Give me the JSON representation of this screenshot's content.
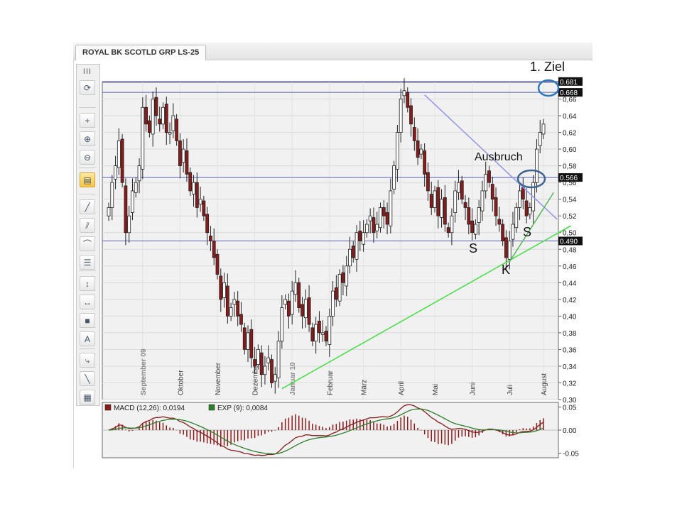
{
  "tab": {
    "title": "ROYAL BK SCOTLD GRP LS-25"
  },
  "toolbar": {
    "grip": "III",
    "buttons": [
      {
        "name": "refresh-icon",
        "glyph": "⟳",
        "active": false
      },
      {
        "name": "crosshair-icon",
        "glyph": "+",
        "active": false
      },
      {
        "name": "zoom-in-icon",
        "glyph": "⊕",
        "active": false
      },
      {
        "name": "zoom-out-icon",
        "glyph": "⊖",
        "active": false
      },
      {
        "name": "chart-settings-icon",
        "glyph": "▤",
        "active": true
      },
      {
        "name": "line-tool-icon",
        "glyph": "╱",
        "active": false
      },
      {
        "name": "channel-tool-icon",
        "glyph": "⫽",
        "active": false
      },
      {
        "name": "arc-tool-icon",
        "glyph": "⌒",
        "active": false
      },
      {
        "name": "fibonacci-tool-icon",
        "glyph": "☰",
        "active": false
      },
      {
        "name": "vertical-line-icon",
        "glyph": "↕",
        "active": false
      },
      {
        "name": "horizontal-line-icon",
        "glyph": "↔",
        "active": false
      },
      {
        "name": "rectangle-tool-icon",
        "glyph": "■",
        "active": false
      },
      {
        "name": "text-tool-icon",
        "glyph": "A",
        "active": false
      },
      {
        "name": "curve-tool-icon",
        "glyph": "⤷",
        "active": false
      },
      {
        "name": "pen-tool-icon",
        "glyph": "╲",
        "active": false
      },
      {
        "name": "palette-icon",
        "glyph": "▦",
        "active": false
      }
    ]
  },
  "annotations": {
    "target": "1. Ziel",
    "breakout": "Ausbruch",
    "left_shoulder": "S",
    "head": "K",
    "right_shoulder": "S"
  },
  "colors": {
    "up": "#ffffff",
    "down": "#8b1a1a",
    "support_trend": "#44e044",
    "resistance_trend": "#8f95ea",
    "neckline_trend": "#55b555",
    "hline": "#5a62c8",
    "circle": "#3e6491",
    "target_circle": "#2e78c0",
    "macd": "#8b1a1a",
    "signal": "#2d7f2d"
  },
  "chart_data": [
    {
      "type": "candlestick",
      "title": "ROYAL BK SCOTLD GRP LS-25",
      "ylim": [
        0.3,
        0.68
      ],
      "yticks": [
        "0,30",
        "0,32",
        "0,34",
        "0,36",
        "0,38",
        "0,40",
        "0,42",
        "0,44",
        "0,46",
        "0,48",
        "0,50",
        "0,52",
        "0,54",
        "0,56",
        "0,58",
        "0,60",
        "0,62",
        "0,64",
        "0,66"
      ],
      "month_labels": [
        {
          "label": "September 09",
          "bold": true,
          "index": 10
        },
        {
          "label": "Oktober",
          "bold": false,
          "index": 21
        },
        {
          "label": "November",
          "bold": false,
          "index": 32
        },
        {
          "label": "Dezember",
          "bold": false,
          "index": 43
        },
        {
          "label": "Januar 10",
          "bold": true,
          "index": 54
        },
        {
          "label": "Februar",
          "bold": false,
          "index": 65
        },
        {
          "label": "März",
          "bold": false,
          "index": 75
        },
        {
          "label": "April",
          "bold": false,
          "index": 86
        },
        {
          "label": "Mai",
          "bold": false,
          "index": 96
        },
        {
          "label": "Juni",
          "bold": false,
          "index": 107
        },
        {
          "label": "Juli",
          "bold": false,
          "index": 118
        },
        {
          "label": "August",
          "bold": false,
          "index": 128
        }
      ],
      "closes": [
        0.53,
        0.56,
        0.58,
        0.61,
        0.56,
        0.5,
        0.52,
        0.55,
        0.56,
        0.58,
        0.65,
        0.63,
        0.62,
        0.66,
        0.64,
        0.63,
        0.65,
        0.62,
        0.62,
        0.64,
        0.61,
        0.58,
        0.6,
        0.57,
        0.55,
        0.56,
        0.53,
        0.54,
        0.52,
        0.5,
        0.49,
        0.47,
        0.45,
        0.42,
        0.44,
        0.4,
        0.41,
        0.42,
        0.4,
        0.39,
        0.36,
        0.38,
        0.35,
        0.34,
        0.36,
        0.33,
        0.34,
        0.35,
        0.32,
        0.33,
        0.37,
        0.41,
        0.42,
        0.4,
        0.43,
        0.44,
        0.41,
        0.4,
        0.42,
        0.39,
        0.37,
        0.39,
        0.38,
        0.38,
        0.37,
        0.4,
        0.43,
        0.42,
        0.45,
        0.44,
        0.46,
        0.48,
        0.47,
        0.5,
        0.49,
        0.5,
        0.51,
        0.52,
        0.5,
        0.51,
        0.53,
        0.52,
        0.51,
        0.55,
        0.58,
        0.62,
        0.66,
        0.67,
        0.65,
        0.63,
        0.61,
        0.59,
        0.6,
        0.57,
        0.55,
        0.53,
        0.55,
        0.52,
        0.54,
        0.51,
        0.5,
        0.52,
        0.55,
        0.56,
        0.54,
        0.53,
        0.51,
        0.5,
        0.51,
        0.53,
        0.55,
        0.57,
        0.56,
        0.54,
        0.52,
        0.51,
        0.49,
        0.47,
        0.49,
        0.51,
        0.53,
        0.55,
        0.54,
        0.52,
        0.53,
        0.56,
        0.6,
        0.62,
        0.63
      ],
      "horizontal_lines": [
        {
          "value": 0.681,
          "label": "0.681"
        },
        {
          "value": 0.668,
          "label": "0.668"
        },
        {
          "value": 0.566,
          "label": "0.566"
        },
        {
          "value": 0.49,
          "label": "0.490"
        }
      ],
      "trendlines": [
        {
          "name": "long-term-support",
          "from": {
            "index": 51,
            "value": 0.313
          },
          "to": {
            "index": 136,
            "value": 0.508
          }
        },
        {
          "name": "downtrend-resistance",
          "from": {
            "index": 93,
            "value": 0.665
          },
          "to": {
            "index": 132,
            "value": 0.516
          }
        },
        {
          "name": "short-term-support",
          "from": {
            "index": 118,
            "value": 0.465
          },
          "to": {
            "index": 131,
            "value": 0.548
          }
        }
      ],
      "grid": true
    },
    {
      "type": "line",
      "title": "",
      "legend": [
        {
          "label": "MACD (12,26): 0,0194",
          "color": "#8b1a1a"
        },
        {
          "label": "EXP (9): 0,0084",
          "color": "#2d7f2d"
        }
      ],
      "ylim": [
        -0.06,
        0.06
      ],
      "yticks": [
        "0.05",
        "0.00",
        "-0.05"
      ],
      "series_from_price": true
    }
  ]
}
